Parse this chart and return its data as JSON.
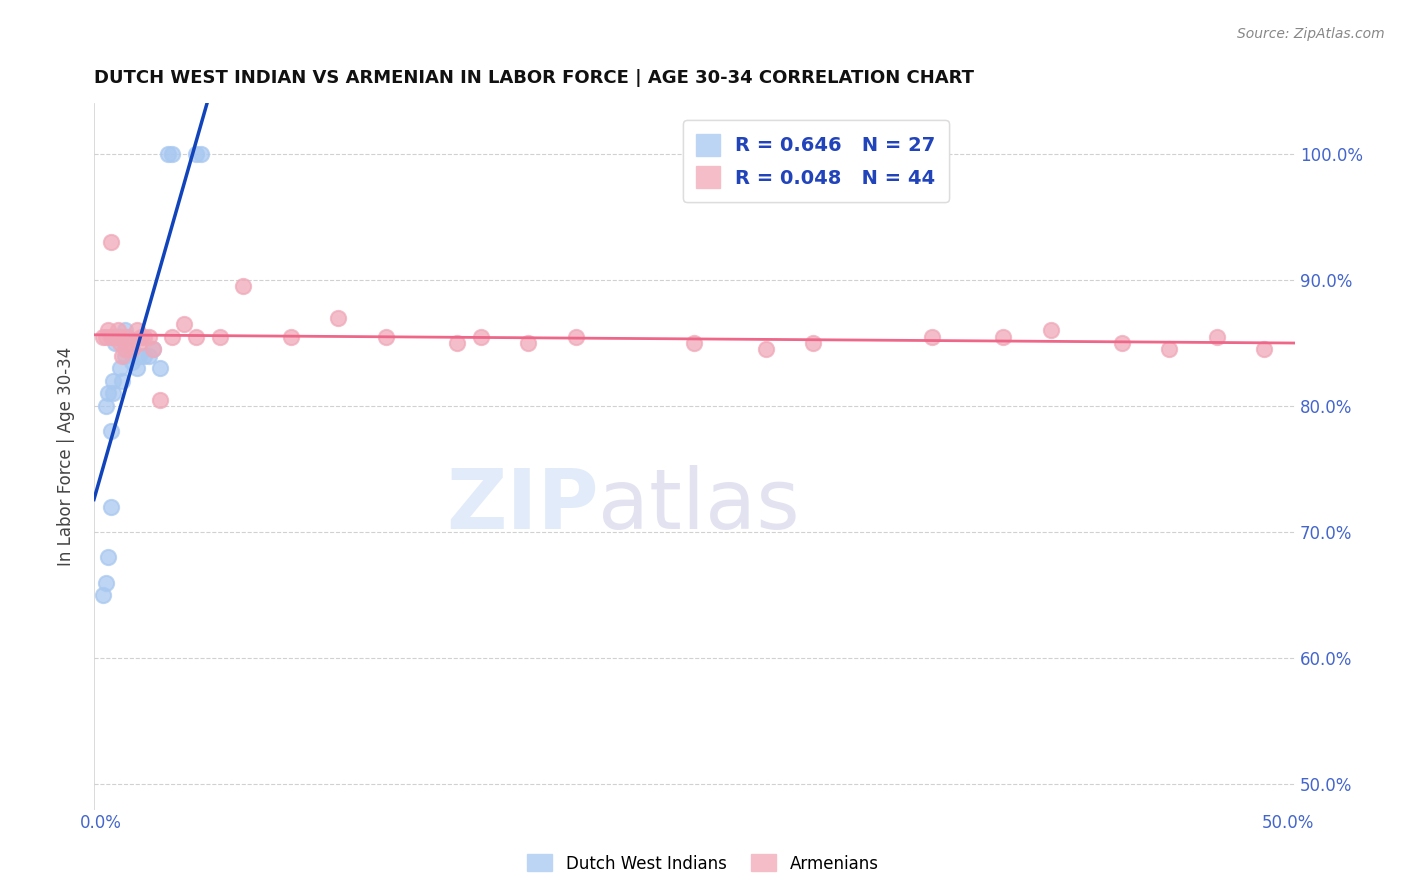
{
  "title": "DUTCH WEST INDIAN VS ARMENIAN IN LABOR FORCE | AGE 30-34 CORRELATION CHART",
  "source": "Source: ZipAtlas.com",
  "ylabel": "In Labor Force | Age 30-34",
  "xlim": [
    -0.003,
    0.503
  ],
  "ylim": [
    0.48,
    1.04
  ],
  "xticks": [
    0.0,
    0.1,
    0.2,
    0.3,
    0.4,
    0.5
  ],
  "xticklabels": [
    "0.0%",
    "",
    "",
    "",
    "",
    "50.0%"
  ],
  "yticks": [
    0.5,
    0.6,
    0.7,
    0.8,
    0.9,
    1.0
  ],
  "yticklabels_right": [
    "50.0%",
    "60.0%",
    "70.0%",
    "80.0%",
    "90.0%",
    "100.0%"
  ],
  "blue_color": "#A8C8F0",
  "pink_color": "#F0A8B8",
  "blue_line_color": "#1144BB",
  "pink_line_color": "#EE6688",
  "dwi_x": [
    0.001,
    0.002,
    0.002,
    0.003,
    0.003,
    0.004,
    0.004,
    0.005,
    0.005,
    0.006,
    0.007,
    0.008,
    0.009,
    0.01,
    0.01,
    0.011,
    0.013,
    0.015,
    0.016,
    0.018,
    0.02,
    0.022,
    0.025,
    0.028,
    0.03,
    0.04,
    0.042
  ],
  "dwi_y": [
    0.65,
    0.66,
    0.8,
    0.68,
    0.81,
    0.72,
    0.78,
    0.81,
    0.82,
    0.85,
    0.855,
    0.83,
    0.82,
    0.84,
    0.86,
    0.855,
    0.835,
    0.83,
    0.84,
    0.84,
    0.84,
    0.845,
    0.83,
    1.0,
    1.0,
    1.0,
    1.0
  ],
  "arm_x": [
    0.001,
    0.002,
    0.003,
    0.004,
    0.004,
    0.005,
    0.006,
    0.007,
    0.008,
    0.008,
    0.009,
    0.01,
    0.011,
    0.012,
    0.013,
    0.015,
    0.016,
    0.017,
    0.018,
    0.02,
    0.022,
    0.025,
    0.03,
    0.035,
    0.04,
    0.05,
    0.06,
    0.08,
    0.1,
    0.12,
    0.15,
    0.16,
    0.18,
    0.2,
    0.25,
    0.28,
    0.3,
    0.35,
    0.38,
    0.4,
    0.43,
    0.45,
    0.47,
    0.49
  ],
  "arm_y": [
    0.855,
    0.855,
    0.86,
    0.855,
    0.93,
    0.855,
    0.855,
    0.86,
    0.85,
    0.855,
    0.84,
    0.845,
    0.855,
    0.85,
    0.845,
    0.86,
    0.85,
    0.855,
    0.855,
    0.855,
    0.845,
    0.805,
    0.855,
    0.865,
    0.855,
    0.855,
    0.895,
    0.855,
    0.87,
    0.855,
    0.85,
    0.855,
    0.85,
    0.855,
    0.85,
    0.845,
    0.85,
    0.855,
    0.855,
    0.86,
    0.85,
    0.845,
    0.855,
    0.845
  ]
}
